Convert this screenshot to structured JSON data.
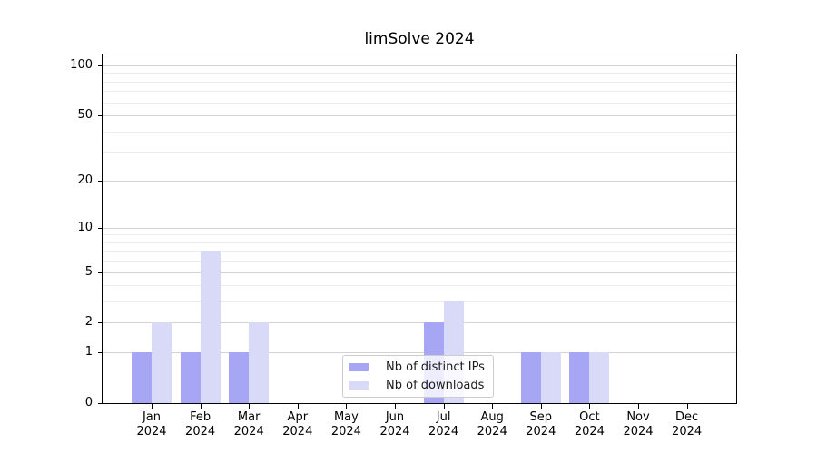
{
  "title": "limSolve 2024",
  "colors": {
    "distinct_ips": "#a6a6f5",
    "downloads": "#d9d9f8",
    "grid_major": "#d3d3d3",
    "grid_minor": "#ececec",
    "axis": "#000000",
    "background": "#ffffff"
  },
  "chart_data": {
    "type": "bar",
    "title": "limSolve 2024",
    "categories": [
      {
        "month": "Jan",
        "year": "2024"
      },
      {
        "month": "Feb",
        "year": "2024"
      },
      {
        "month": "Mar",
        "year": "2024"
      },
      {
        "month": "Apr",
        "year": "2024"
      },
      {
        "month": "May",
        "year": "2024"
      },
      {
        "month": "Jun",
        "year": "2024"
      },
      {
        "month": "Jul",
        "year": "2024"
      },
      {
        "month": "Aug",
        "year": "2024"
      },
      {
        "month": "Sep",
        "year": "2024"
      },
      {
        "month": "Oct",
        "year": "2024"
      },
      {
        "month": "Nov",
        "year": "2024"
      },
      {
        "month": "Dec",
        "year": "2024"
      }
    ],
    "series": [
      {
        "name": "Nb of distinct IPs",
        "color": "#a6a6f5",
        "values": [
          1,
          1,
          1,
          0,
          0,
          0,
          2,
          0,
          1,
          1,
          0,
          0
        ]
      },
      {
        "name": "Nb of downloads",
        "color": "#d9d9f8",
        "values": [
          2,
          7,
          2,
          0,
          0,
          0,
          3,
          0,
          1,
          1,
          0,
          0
        ]
      }
    ],
    "y_axis": {
      "scale": "log1p",
      "ticks": [
        0,
        1,
        2,
        5,
        10,
        20,
        50,
        100
      ],
      "minor_gridlines": [
        3,
        4,
        6,
        7,
        8,
        9,
        30,
        40,
        60,
        70,
        80,
        90
      ],
      "max": 116
    },
    "xlabel": "",
    "ylabel": "",
    "grid": true,
    "legend": {
      "position": "lower center",
      "items": [
        "Nb of distinct IPs",
        "Nb of downloads"
      ]
    }
  }
}
